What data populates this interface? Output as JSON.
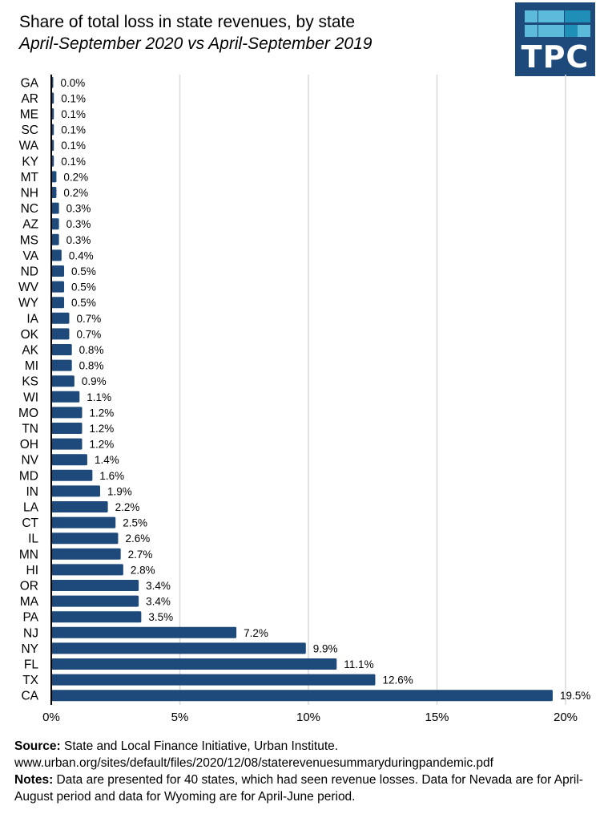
{
  "header": {
    "title": "Share of total loss in state revenues, by state",
    "subtitle": "April-September 2020 vs April-September 2019",
    "logo_text": "TPC"
  },
  "colors": {
    "bar": "#1d4a7b",
    "grid": "#d9d9d9",
    "axis": "#000000",
    "logo_bg": "#1d4a7b",
    "logo_sq_light": "#5bbbd8",
    "logo_sq_dark": "#1f8fb8"
  },
  "chart_data": {
    "type": "bar",
    "orientation": "horizontal",
    "title": "Share of total loss in state revenues, by state",
    "subtitle": "April-September 2020 vs April-September 2019",
    "categories": [
      "GA",
      "AR",
      "ME",
      "SC",
      "WA",
      "KY",
      "MT",
      "NH",
      "NC",
      "AZ",
      "MS",
      "VA",
      "ND",
      "WV",
      "WY",
      "IA",
      "OK",
      "AK",
      "MI",
      "KS",
      "WI",
      "MO",
      "TN",
      "OH",
      "NV",
      "MD",
      "IN",
      "LA",
      "CT",
      "IL",
      "MN",
      "HI",
      "OR",
      "MA",
      "PA",
      "NJ",
      "NY",
      "FL",
      "TX",
      "CA"
    ],
    "values": [
      0.04,
      0.1,
      0.1,
      0.1,
      0.1,
      0.1,
      0.2,
      0.2,
      0.3,
      0.3,
      0.3,
      0.4,
      0.5,
      0.5,
      0.5,
      0.7,
      0.7,
      0.8,
      0.8,
      0.9,
      1.1,
      1.2,
      1.2,
      1.2,
      1.4,
      1.6,
      1.9,
      2.2,
      2.5,
      2.6,
      2.7,
      2.8,
      3.4,
      3.4,
      3.5,
      7.2,
      9.9,
      11.1,
      12.6,
      19.5
    ],
    "data_labels": [
      "0.0%",
      "0.1%",
      "0.1%",
      "0.1%",
      "0.1%",
      "0.1%",
      "0.2%",
      "0.2%",
      "0.3%",
      "0.3%",
      "0.3%",
      "0.4%",
      "0.5%",
      "0.5%",
      "0.5%",
      "0.7%",
      "0.7%",
      "0.8%",
      "0.8%",
      "0.9%",
      "1.1%",
      "1.2%",
      "1.2%",
      "1.2%",
      "1.4%",
      "1.6%",
      "1.9%",
      "2.2%",
      "2.5%",
      "2.6%",
      "2.7%",
      "2.8%",
      "3.4%",
      "3.4%",
      "3.5%",
      "7.2%",
      "9.9%",
      "11.1%",
      "12.6%",
      "19.5%"
    ],
    "xlim": [
      0,
      20
    ],
    "xticks": [
      0,
      5,
      10,
      15,
      20
    ],
    "xtick_labels": [
      "0%",
      "5%",
      "10%",
      "15%",
      "20%"
    ],
    "xlabel": "",
    "ylabel": "",
    "grid": "vertical"
  },
  "footer": {
    "source_label": "Source:",
    "source_text": " State and Local Finance Initiative, Urban Institute.",
    "source_url": "www.urban.org/sites/default/files/2020/12/08/staterevenuesummaryduringpandemic.pdf",
    "notes_label": "Notes:",
    "notes_text": " Data are presented for 40 states, which had seen revenue losses. Data for Nevada are for April-August period and data for Wyoming are for April-June period."
  }
}
